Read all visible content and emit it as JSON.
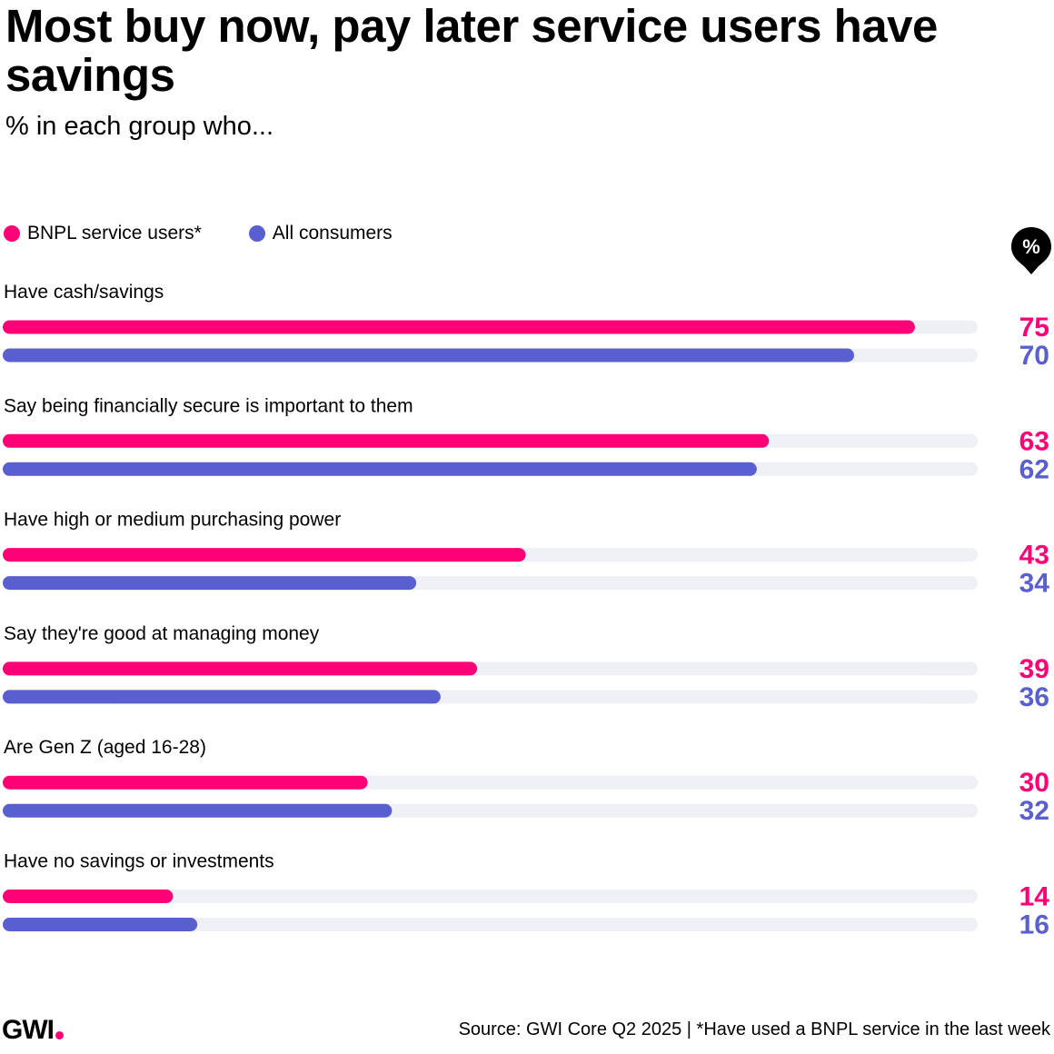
{
  "header": {
    "title": "Most buy now, pay later service users have savings",
    "subtitle": "% in each group who..."
  },
  "legend": {
    "items": [
      {
        "label": "BNPL service users*",
        "color": "#FF0077"
      },
      {
        "label": "All consumers",
        "color": "#5A5FD0"
      }
    ]
  },
  "badge": {
    "symbol": "%",
    "icon": "percent-pin-icon"
  },
  "chart_data": {
    "type": "bar",
    "orientation": "horizontal",
    "xlim": [
      0,
      80
    ],
    "grid": false,
    "legend_position": "top-left",
    "categories": [
      "Have cash/savings",
      "Say being financially secure is important to them",
      "Have high or medium purchasing power",
      "Say they're good at managing money",
      "Are Gen Z (aged 16-28)",
      "Have no savings or investments"
    ],
    "series": [
      {
        "name": "BNPL service users*",
        "color": "#FF0077",
        "values": [
          75,
          63,
          43,
          39,
          30,
          14
        ]
      },
      {
        "name": "All consumers",
        "color": "#5A5FD0",
        "values": [
          70,
          62,
          34,
          36,
          32,
          16
        ]
      }
    ],
    "track_color": "#EEF0F5"
  },
  "footer": {
    "logo": "GWI",
    "source": "Source: GWI Core Q2 2025 | *Have used a BNPL service in the last week"
  }
}
